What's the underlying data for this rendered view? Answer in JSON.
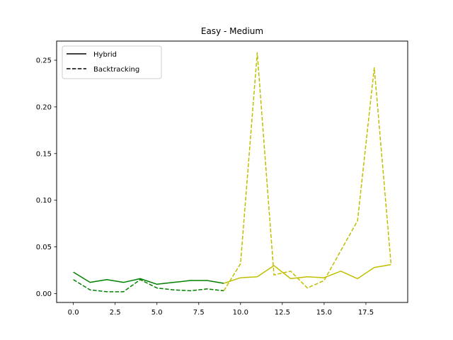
{
  "chart_data": {
    "type": "line",
    "title": "Easy - Medium",
    "xlabel": "",
    "ylabel": "",
    "xlim": [
      -1,
      20
    ],
    "ylim": [
      -0.0095,
      0.2705
    ],
    "x_ticks": [
      0,
      2.5,
      5,
      7.5,
      10,
      12.5,
      15,
      17.5
    ],
    "x_tick_labels": [
      "0.0",
      "2.5",
      "5.0",
      "7.5",
      "10.0",
      "12.5",
      "15.0",
      "17.5"
    ],
    "y_ticks": [
      0,
      0.05,
      0.1,
      0.15,
      0.2,
      0.25
    ],
    "y_tick_labels": [
      "0.00",
      "0.05",
      "0.10",
      "0.15",
      "0.20",
      "0.25"
    ],
    "grid": false,
    "legend": {
      "position": "top-left",
      "entries": [
        {
          "label": "Hybrid",
          "style": "solid",
          "color": "#000000"
        },
        {
          "label": "Backtracking",
          "style": "dashed",
          "color": "#000000"
        }
      ]
    },
    "series": [
      {
        "style": "solid",
        "color": "#008000",
        "x": [
          0,
          1,
          2,
          3,
          4,
          5,
          6,
          7,
          8,
          9
        ],
        "values": [
          0.023,
          0.012,
          0.015,
          0.012,
          0.016,
          0.01,
          0.012,
          0.014,
          0.014,
          0.011
        ]
      },
      {
        "style": "dashed",
        "color": "#008000",
        "x": [
          0,
          1,
          2,
          3,
          4,
          5,
          6,
          7,
          8,
          9
        ],
        "values": [
          0.015,
          0.004,
          0.002,
          0.002,
          0.015,
          0.006,
          0.004,
          0.003,
          0.005,
          0.003
        ]
      },
      {
        "style": "solid",
        "color": "#bfbf00",
        "x": [
          9,
          10,
          11,
          12,
          13,
          14,
          15,
          16,
          17,
          18,
          19
        ],
        "values": [
          0.011,
          0.017,
          0.018,
          0.03,
          0.016,
          0.018,
          0.017,
          0.024,
          0.016,
          0.028,
          0.031
        ]
      },
      {
        "style": "dashed",
        "color": "#bfbf00",
        "x": [
          9,
          10,
          11,
          12,
          13,
          14,
          15,
          16,
          17,
          18,
          19
        ],
        "values": [
          0.003,
          0.032,
          0.258,
          0.02,
          0.024,
          0.006,
          0.014,
          0.046,
          0.078,
          0.242,
          0.032
        ]
      }
    ]
  }
}
